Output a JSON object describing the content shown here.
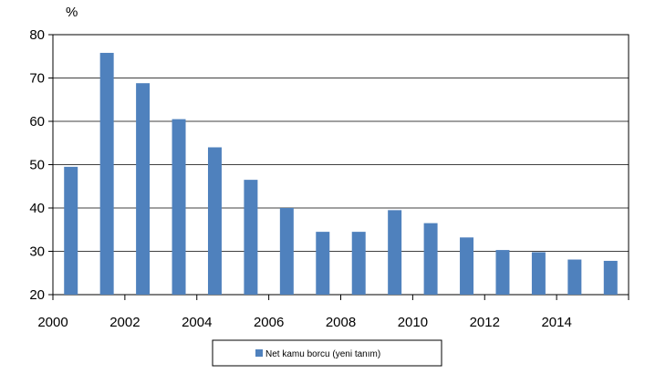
{
  "chart_data": {
    "type": "bar",
    "y_unit_label": "%",
    "categories": [
      "2000",
      "2001",
      "2002",
      "2003",
      "2004",
      "2005",
      "2006",
      "2007",
      "2008",
      "2009",
      "2010",
      "2011",
      "2012",
      "2013",
      "2014",
      "2015"
    ],
    "series": [
      {
        "name": "Net kamu borcu (yeni tanım)",
        "color": "#4F81BD",
        "values": [
          49.5,
          75.8,
          68.8,
          60.5,
          54.0,
          46.5,
          40.0,
          34.5,
          34.5,
          39.5,
          36.5,
          33.2,
          30.3,
          29.8,
          28.1,
          27.8
        ]
      }
    ],
    "x_tick_labels": [
      "2000",
      "2002",
      "2004",
      "2006",
      "2008",
      "2010",
      "2012",
      "2014"
    ],
    "y_ticks": [
      20,
      30,
      40,
      50,
      60,
      70,
      80
    ],
    "ylim": [
      20,
      80
    ],
    "grid": true,
    "legend_position": "bottom"
  }
}
